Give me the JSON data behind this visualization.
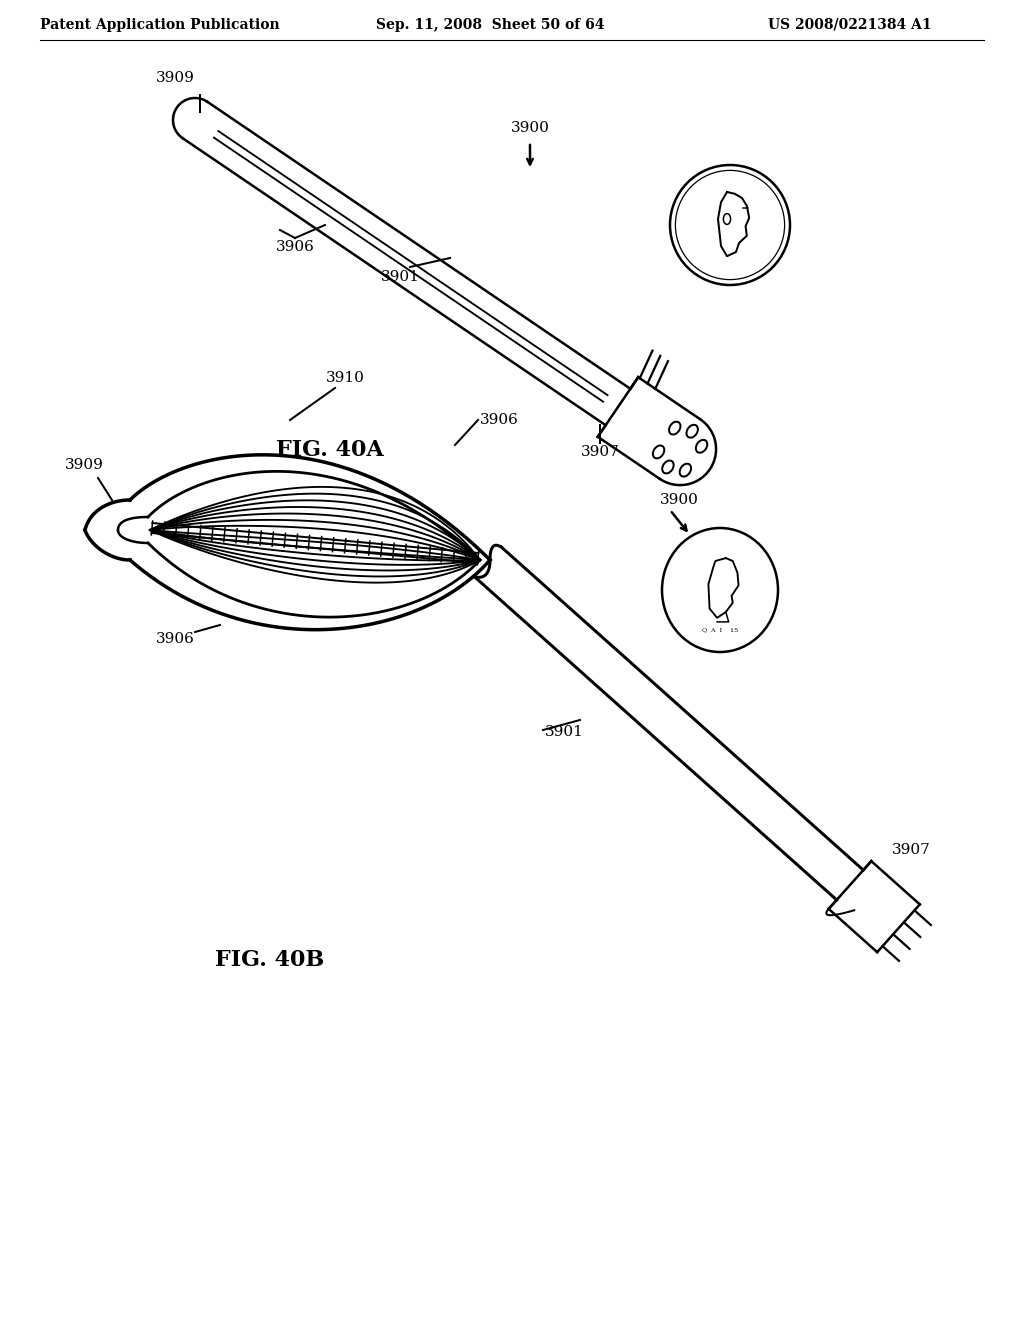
{
  "background_color": "#ffffff",
  "header_left": "Patent Application Publication",
  "header_center": "Sep. 11, 2008  Sheet 50 of 64",
  "header_right": "US 2008/0221384 A1",
  "header_fontsize": 10,
  "fig40a_label": "FIG. 40A",
  "fig40b_label": "FIG. 40B",
  "line_color": "#000000",
  "line_width": 1.8
}
